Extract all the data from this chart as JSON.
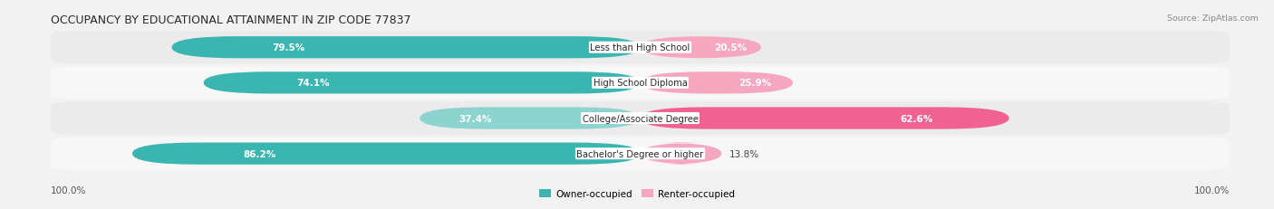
{
  "title": "OCCUPANCY BY EDUCATIONAL ATTAINMENT IN ZIP CODE 77837",
  "source": "Source: ZipAtlas.com",
  "categories": [
    "Less than High School",
    "High School Diploma",
    "College/Associate Degree",
    "Bachelor's Degree or higher"
  ],
  "owner_values": [
    79.5,
    74.1,
    37.4,
    86.2
  ],
  "renter_values": [
    20.5,
    25.9,
    62.6,
    13.8
  ],
  "owner_color_dark": "#3ab5b0",
  "owner_color_light": "#8dd4d1",
  "renter_color_dark": "#f06292",
  "renter_color_light": "#f4a7bf",
  "row_bg_color_odd": "#ebebeb",
  "row_bg_color_even": "#f7f7f7",
  "background_color": "#f2f2f2",
  "owner_label": "Owner-occupied",
  "renter_label": "Renter-occupied",
  "figsize": [
    14.06,
    2.32
  ],
  "dpi": 100
}
